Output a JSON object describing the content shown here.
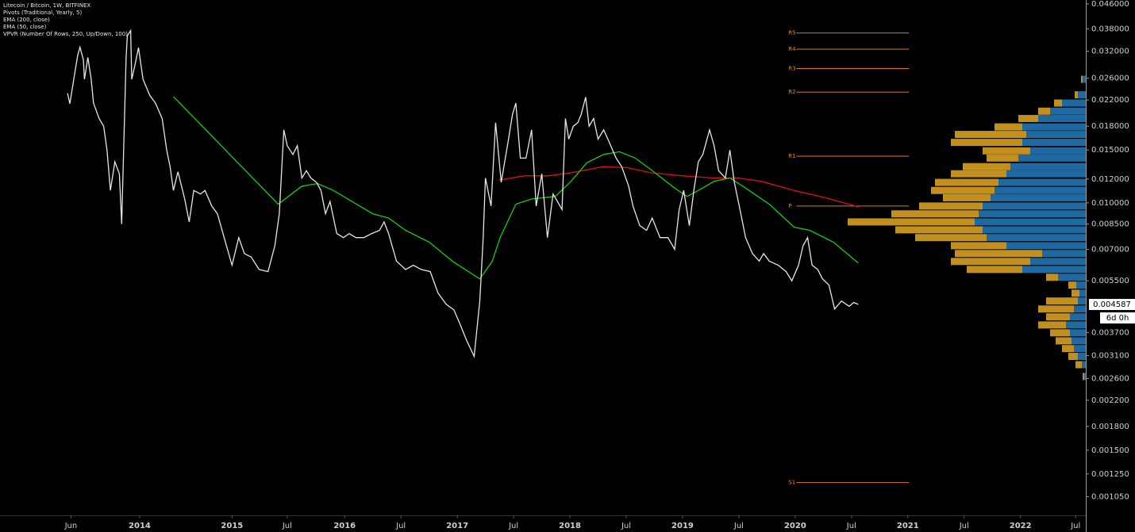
{
  "chart_data": {
    "type": "line",
    "title": "Litecoin / Bitcoin, 1W, BITFINEX",
    "log_scale": true,
    "grid": false,
    "color": "#e6e6e6",
    "xlim": [
      2012.94,
      2022.58
    ],
    "ylim": [
      0.00091,
      0.0474
    ],
    "xticks": [
      {
        "value": 2013.57,
        "label": "Jun"
      },
      {
        "value": 2014.18,
        "label": "2014"
      },
      2015,
      {
        "value": 2015.49,
        "label": "Jul"
      },
      2016,
      {
        "value": 2016.5,
        "label": "Jul"
      },
      2017,
      {
        "value": 2017.5,
        "label": "Jul"
      },
      2018,
      {
        "value": 2018.5,
        "label": "Jul"
      },
      2019,
      {
        "value": 2019.5,
        "label": "Jul"
      },
      2020,
      {
        "value": 2020.5,
        "label": "Jul"
      },
      2021,
      {
        "value": 2021.5,
        "label": "Jul"
      },
      2022,
      {
        "value": 2022.49,
        "label": "Jul"
      }
    ],
    "yticks": [
      {
        "value": 0.046,
        "label": "0.046000"
      },
      {
        "value": 0.038,
        "label": "0.038000"
      },
      {
        "value": 0.032,
        "label": "0.032000"
      },
      {
        "value": 0.026,
        "label": "0.026000"
      },
      {
        "value": 0.022,
        "label": "0.022000"
      },
      {
        "value": 0.018,
        "label": "0.018000"
      },
      {
        "value": 0.015,
        "label": "0.015000"
      },
      {
        "value": 0.012,
        "label": "0.012000"
      },
      {
        "value": 0.01,
        "label": "0.010000"
      },
      {
        "value": 0.0085,
        "label": "0.008500"
      },
      {
        "value": 0.007,
        "label": "0.007000"
      },
      {
        "value": 0.0055,
        "label": "0.005500"
      },
      {
        "value": 0.0037,
        "label": "0.003700"
      },
      {
        "value": 0.0031,
        "label": "0.003100"
      },
      {
        "value": 0.0026,
        "label": "0.002600"
      },
      {
        "value": 0.0022,
        "label": "0.002200"
      },
      {
        "value": 0.0018,
        "label": "0.001800"
      },
      {
        "value": 0.0015,
        "label": "0.001500"
      },
      {
        "value": 0.00125,
        "label": "0.001250"
      },
      {
        "value": 0.00105,
        "label": "0.001050"
      }
    ],
    "x": [
      2013.54,
      2013.56,
      2013.61,
      2013.63,
      2013.65,
      2013.68,
      2013.69,
      2013.72,
      2013.75,
      2013.77,
      2013.82,
      2013.86,
      2013.89,
      2013.92,
      2013.96,
      2014.0,
      2014.02,
      2014.06,
      2014.07,
      2014.1,
      2014.11,
      2014.14,
      2014.17,
      2014.21,
      2014.27,
      2014.32,
      2014.38,
      2014.42,
      2014.45,
      2014.48,
      2014.52,
      2014.58,
      2014.62,
      2014.66,
      2014.72,
      2014.76,
      2014.82,
      2014.87,
      2014.93,
      2015.0,
      2015.06,
      2015.11,
      2015.17,
      2015.24,
      2015.32,
      2015.38,
      2015.42,
      2015.46,
      2015.49,
      2015.54,
      2015.58,
      2015.62,
      2015.66,
      2015.7,
      2015.75,
      2015.79,
      2015.83,
      2015.87,
      2015.93,
      2015.99,
      2016.04,
      2016.1,
      2016.17,
      2016.24,
      2016.31,
      2016.35,
      2016.39,
      2016.46,
      2016.54,
      2016.61,
      2016.68,
      2016.76,
      2016.83,
      2016.9,
      2016.97,
      2017.03,
      2017.08,
      2017.15,
      2017.2,
      2017.23,
      2017.25,
      2017.3,
      2017.34,
      2017.39,
      2017.45,
      2017.49,
      2017.52,
      2017.56,
      2017.61,
      2017.66,
      2017.7,
      2017.75,
      2017.8,
      2017.85,
      2017.89,
      2017.93,
      2017.96,
      2017.99,
      2018.03,
      2018.07,
      2018.1,
      2018.14,
      2018.17,
      2018.21,
      2018.25,
      2018.3,
      2018.35,
      2018.41,
      2018.46,
      2018.52,
      2018.56,
      2018.62,
      2018.68,
      2018.73,
      2018.8,
      2018.87,
      2018.93,
      2018.97,
      2019.01,
      2019.06,
      2019.1,
      2019.14,
      2019.18,
      2019.24,
      2019.28,
      2019.32,
      2019.38,
      2019.42,
      2019.46,
      2019.51,
      2019.56,
      2019.62,
      2019.68,
      2019.72,
      2019.77,
      2019.85,
      2019.92,
      2019.97,
      2020.03,
      2020.07,
      2020.11,
      2020.15,
      2020.2,
      2020.24,
      2020.3,
      2020.35,
      2020.41,
      2020.48,
      2020.52,
      2020.56
    ],
    "values": [
      0.0232,
      0.0214,
      0.028,
      0.031,
      0.033,
      0.03,
      0.0258,
      0.0305,
      0.0258,
      0.0215,
      0.0191,
      0.018,
      0.015,
      0.011,
      0.0137,
      0.0125,
      0.0085,
      0.0305,
      0.036,
      0.0375,
      0.0258,
      0.029,
      0.0329,
      0.0258,
      0.0228,
      0.0215,
      0.0191,
      0.015,
      0.0132,
      0.011,
      0.0127,
      0.0103,
      0.00864,
      0.011,
      0.0107,
      0.011,
      0.00976,
      0.0092,
      0.00766,
      0.0062,
      0.00766,
      0.00678,
      0.0066,
      0.006,
      0.0059,
      0.0072,
      0.0092,
      0.0175,
      0.0155,
      0.0145,
      0.0155,
      0.0121,
      0.0128,
      0.0121,
      0.0117,
      0.011,
      0.0092,
      0.0101,
      0.0079,
      0.00766,
      0.0079,
      0.00766,
      0.00766,
      0.0079,
      0.0081,
      0.00864,
      0.0079,
      0.0064,
      0.006,
      0.0062,
      0.006,
      0.0059,
      0.005,
      0.0046,
      0.0044,
      0.0039,
      0.0035,
      0.00308,
      0.00471,
      0.00766,
      0.0121,
      0.00976,
      0.0185,
      0.0117,
      0.0159,
      0.0197,
      0.0215,
      0.0141,
      0.0141,
      0.0175,
      0.00976,
      0.0125,
      0.00766,
      0.0107,
      0.0101,
      0.0095,
      0.0191,
      0.0163,
      0.018,
      0.0185,
      0.0197,
      0.0225,
      0.018,
      0.0191,
      0.0163,
      0.0175,
      0.0159,
      0.0141,
      0.0132,
      0.0114,
      0.00976,
      0.0084,
      0.0081,
      0.0089,
      0.00766,
      0.00766,
      0.007,
      0.0095,
      0.011,
      0.0084,
      0.011,
      0.0137,
      0.0145,
      0.0175,
      0.0155,
      0.0128,
      0.0121,
      0.015,
      0.0117,
      0.0095,
      0.00766,
      0.00678,
      0.0064,
      0.00678,
      0.0064,
      0.0062,
      0.0059,
      0.0055,
      0.0062,
      0.0072,
      0.00766,
      0.0062,
      0.006,
      0.0056,
      0.00532,
      0.00443,
      0.00471,
      0.00452,
      0.00466,
      0.004587
    ],
    "last_price": 0.004587,
    "countdown": "6d 0h",
    "series": [
      {
        "name": "EMA (200, close)",
        "color": "#e01010",
        "x": [
          2017.37,
          2017.59,
          2017.8,
          2018.01,
          2018.3,
          2018.51,
          2018.72,
          2019.0,
          2019.28,
          2019.49,
          2019.7,
          2019.99,
          2020.27,
          2020.56
        ],
        "values": [
          0.0119,
          0.0123,
          0.0123,
          0.0126,
          0.0132,
          0.0131,
          0.0126,
          0.0123,
          0.0121,
          0.0121,
          0.0118,
          0.011,
          0.0104,
          0.0097
        ]
      },
      {
        "name": "EMA (50, close)",
        "color": "#10d010",
        "x": [
          2014.48,
          2015.41,
          2015.62,
          2015.76,
          2015.9,
          2016.25,
          2016.39,
          2016.54,
          2016.75,
          2016.96,
          2017.2,
          2017.31,
          2017.38,
          2017.52,
          2017.66,
          2017.87,
          2018.01,
          2018.15,
          2018.3,
          2018.44,
          2018.58,
          2018.72,
          2018.93,
          2019.04,
          2019.14,
          2019.28,
          2019.42,
          2019.56,
          2019.77,
          2019.99,
          2020.13,
          2020.34,
          2020.56
        ],
        "values": [
          0.0226,
          0.0099,
          0.01137,
          0.0116,
          0.011,
          0.0092,
          0.0089,
          0.0081,
          0.0074,
          0.00638,
          0.00558,
          0.00638,
          0.00766,
          0.0099,
          0.0103,
          0.0105,
          0.0118,
          0.0136,
          0.0145,
          0.0148,
          0.0141,
          0.0129,
          0.0112,
          0.0105,
          0.011,
          0.0118,
          0.0121,
          0.0112,
          0.0099,
          0.0083,
          0.0081,
          0.0074,
          0.0063
        ]
      }
    ],
    "pivots": {
      "name": "Pivots (Traditional, Yearly, 5)",
      "color": "#d9782a",
      "span": [
        2020.01,
        2021.01
      ],
      "levels": [
        {
          "label": "R5",
          "value": 0.0368
        },
        {
          "label": "R4",
          "value": 0.0325
        },
        {
          "label": "R3",
          "value": 0.028
        },
        {
          "label": "R2",
          "value": 0.0234
        },
        {
          "label": "R1",
          "value": 0.0143
        },
        {
          "label": "P",
          "value": 0.00976
        },
        {
          "label": "S1",
          "value": 0.00117
        }
      ]
    },
    "profile": {
      "name": "VPVR (Number Of Rows, 250, Up/Down, 100)",
      "up_color": "#1f69a3",
      "down_color": "#c38f1e",
      "levels": [
        0.0258,
        0.0229,
        0.0215,
        0.0202,
        0.0191,
        0.0179,
        0.0169,
        0.0159,
        0.0149,
        0.0141,
        0.0132,
        0.0125,
        0.0117,
        0.011,
        0.0104,
        0.00976,
        0.00919,
        0.00864,
        0.00813,
        0.00766,
        0.0072,
        0.00678,
        0.00638,
        0.006,
        0.00565,
        0.00532,
        0.005,
        0.00471,
        0.00443,
        0.00417,
        0.00392,
        0.00369,
        0.00347,
        0.00327,
        0.00308,
        0.00289,
        0.00264
      ],
      "up": [
        4,
        10,
        30,
        45,
        60,
        80,
        75,
        80,
        70,
        85,
        95,
        100,
        110,
        115,
        120,
        130,
        135,
        140,
        130,
        125,
        100,
        55,
        70,
        80,
        35,
        12,
        8,
        10,
        15,
        20,
        25,
        20,
        18,
        15,
        10,
        5,
        2
      ],
      "down": [
        2,
        4,
        10,
        15,
        25,
        35,
        90,
        90,
        60,
        40,
        60,
        70,
        80,
        80,
        60,
        80,
        110,
        160,
        110,
        90,
        70,
        110,
        100,
        70,
        15,
        10,
        10,
        40,
        45,
        30,
        35,
        25,
        20,
        15,
        12,
        8,
        2
      ]
    }
  }
}
